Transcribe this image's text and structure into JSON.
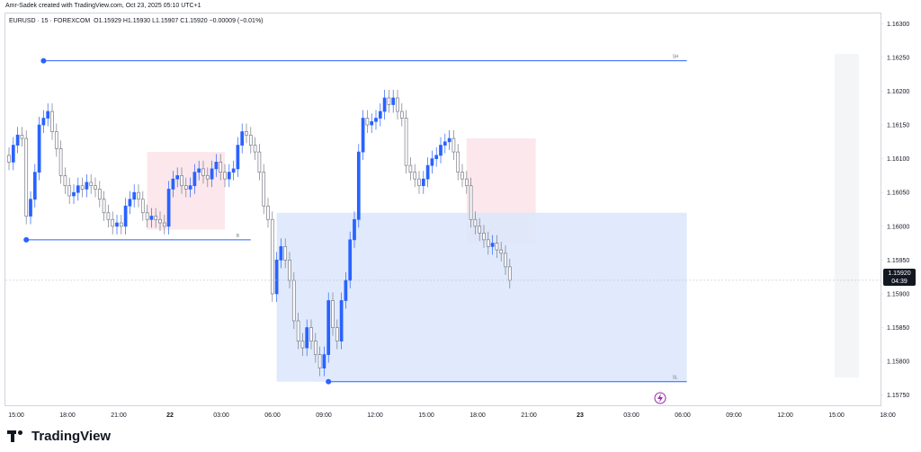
{
  "header": {
    "created_by": "Amr-Sadek created with TradingView.com, Oct 23, 2025 05:10 UTC+1"
  },
  "symbol": {
    "name": "EURUSD · 15 · FOREXCOM",
    "values": "O1.15929 H1.15930 L1.15907 C1.15920 −0.00009 (−0.01%)"
  },
  "price_badge": {
    "price": "1.15920",
    "countdown": "04:39"
  },
  "logo": {
    "text": "TradingView"
  },
  "colors": {
    "up": "#2962ff",
    "down": "#9e9e9e",
    "line": "#2962ff",
    "zone_blue": "#dbe6fb",
    "zone_pink": "#fbe4ea"
  },
  "chart_data": {
    "type": "candlestick",
    "symbol": "EURUSD",
    "timeframe": "15",
    "x_tick_labels": [
      "15:00",
      "18:00",
      "21:00",
      "22",
      "03:00",
      "06:00",
      "09:00",
      "12:00",
      "15:00",
      "18:00",
      "21:00",
      "23",
      "03:00",
      "06:00",
      "09:00",
      "12:00",
      "15:00",
      "18:00"
    ],
    "y_tick_labels": [
      "1.16300",
      "1.16250",
      "1.16200",
      "1.16150",
      "1.16100",
      "1.16050",
      "1.16000",
      "1.15950",
      "1.15900",
      "1.15850",
      "1.15800",
      "1.15750"
    ],
    "ylim": [
      1.15735,
      1.16315
    ],
    "last_price": 1.1592,
    "series_close": [
      1.16095,
      1.1612,
      1.16135,
      1.1613,
      1.16015,
      1.1604,
      1.1608,
      1.1615,
      1.1616,
      1.1617,
      1.1614,
      1.16115,
      1.16075,
      1.1606,
      1.16045,
      1.1605,
      1.1606,
      1.16055,
      1.16065,
      1.1606,
      1.16055,
      1.1604,
      1.1602,
      1.1601,
      1.16,
      1.16005,
      1.16,
      1.1603,
      1.1604,
      1.1605,
      1.1604,
      1.1602,
      1.1601,
      1.16015,
      1.1601,
      1.16005,
      1.16,
      1.16055,
      1.1607,
      1.16075,
      1.1606,
      1.16055,
      1.1606,
      1.1608,
      1.16085,
      1.16075,
      1.1607,
      1.16085,
      1.16095,
      1.1608,
      1.1607,
      1.1608,
      1.16085,
      1.1612,
      1.1614,
      1.16135,
      1.1612,
      1.1611,
      1.1608,
      1.1603,
      1.1601,
      1.159,
      1.1595,
      1.1597,
      1.1595,
      1.1592,
      1.1586,
      1.1583,
      1.1582,
      1.1585,
      1.1583,
      1.1581,
      1.1579,
      1.1581,
      1.1589,
      1.1585,
      1.1583,
      1.1589,
      1.1592,
      1.1598,
      1.1601,
      1.1611,
      1.1616,
      1.1615,
      1.16155,
      1.1616,
      1.1617,
      1.1619,
      1.1618,
      1.1619,
      1.1617,
      1.1616,
      1.1609,
      1.1608,
      1.1607,
      1.1606,
      1.1607,
      1.1609,
      1.161,
      1.16105,
      1.1612,
      1.16125,
      1.1613,
      1.1611,
      1.1608,
      1.1607,
      1.1606,
      1.1601,
      1.16,
      1.1599,
      1.1598,
      1.1597,
      1.15975,
      1.15965,
      1.1596,
      1.1594,
      1.1592
    ],
    "annotations": {
      "pink_zones": [
        {
          "t0": 32,
          "t1": 50,
          "y0": 1.1611,
          "y1": 1.15995
        },
        {
          "t0": 106,
          "t1": 122,
          "y0": 1.1613,
          "y1": 1.15975
        }
      ],
      "blue_zone": {
        "t0": 62,
        "t1": 157,
        "y0": 1.1602,
        "y1": 1.1577
      },
      "lines": [
        {
          "t0": 8,
          "t1": 157,
          "y": 1.16245,
          "label": "SH"
        },
        {
          "t0": 4,
          "t1": 56,
          "y": 1.1598,
          "label": "B"
        },
        {
          "t0": 74,
          "t1": 157,
          "y": 1.1577,
          "label": "SL"
        }
      ]
    }
  }
}
